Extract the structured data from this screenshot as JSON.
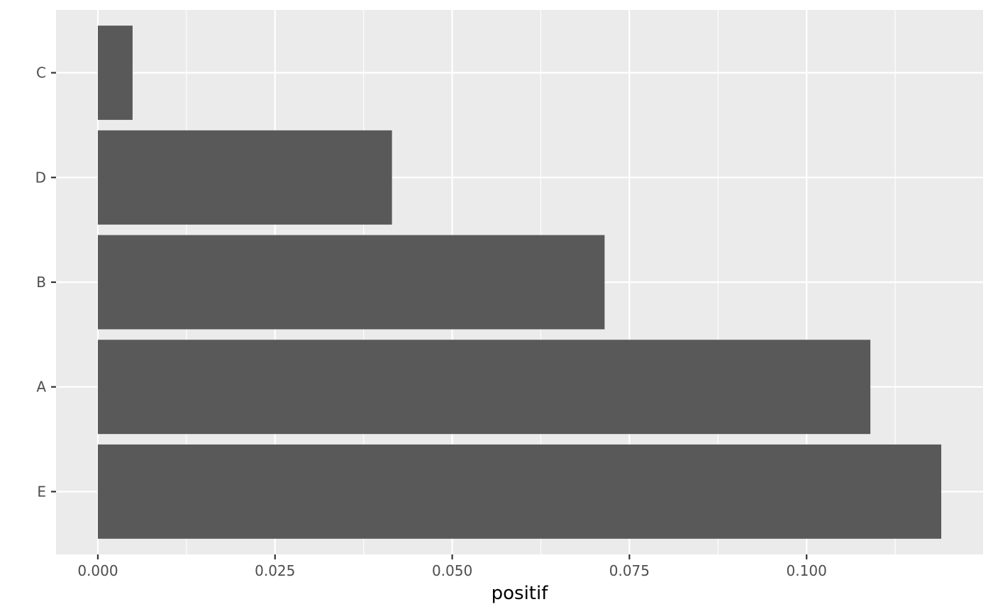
{
  "chart_data": {
    "type": "bar",
    "orientation": "horizontal",
    "categories": [
      "E",
      "A",
      "B",
      "D",
      "C"
    ],
    "values": [
      0.119,
      0.109,
      0.0715,
      0.0415,
      0.0049
    ],
    "xlabel": "positif",
    "ylabel": "",
    "xlim": [
      -0.0059,
      0.1249
    ],
    "x_ticks": [
      0.0,
      0.025,
      0.05,
      0.075,
      0.1
    ],
    "x_tick_labels": [
      "0.000",
      "0.025",
      "0.050",
      "0.075",
      "0.100"
    ],
    "x_minor_ticks": [
      0.0125,
      0.0375,
      0.0625,
      0.0875,
      0.1125
    ],
    "grid": true,
    "legend": "none",
    "colors": {
      "panel_background": "#ebebeb",
      "grid_line": "#ffffff",
      "bar_fill": "#595959",
      "tick_text": "#4d4d4d",
      "axis_title": "#000000"
    }
  }
}
